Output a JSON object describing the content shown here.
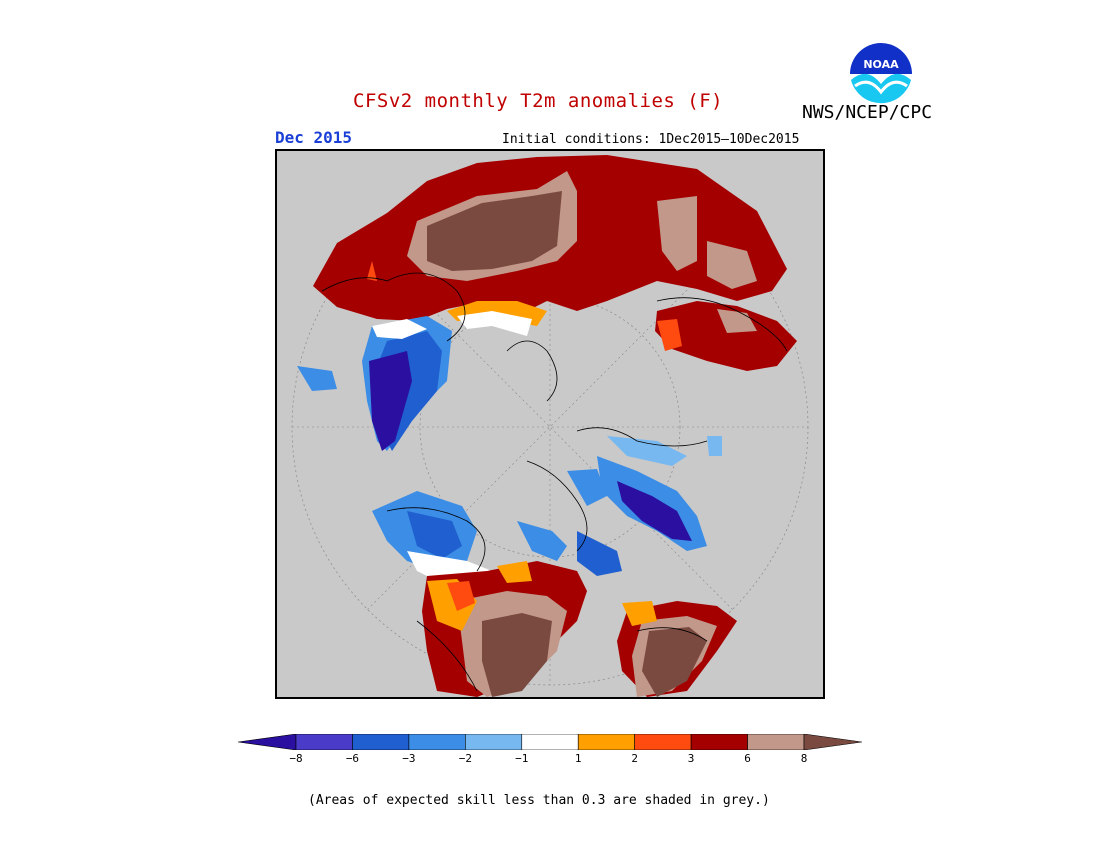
{
  "title": "CFSv2 monthly T2m anomalies (F)",
  "org": "NWS/NCEP/CPC",
  "logo_text": "NOAA",
  "month": "Dec 2015",
  "initial_conditions": "Initial conditions: 1Dec2015–10Dec2015",
  "footnote": "(Areas of expected skill less than 0.3 are shaded in grey.)",
  "colorbar": {
    "ticks": [
      "−8",
      "−6",
      "−3",
      "−2",
      "−1",
      "1",
      "2",
      "3",
      "6",
      "8"
    ],
    "colors": [
      "#2a0fa0",
      "#4a3cc8",
      "#1f5fcf",
      "#3c8de6",
      "#78b8f0",
      "#ffffff",
      "#ffa000",
      "#ff4a10",
      "#a50000",
      "#c2988a",
      "#7a4a40"
    ]
  },
  "colors": {
    "background_grey": "#c9c9c9",
    "title": "#c00000",
    "month": "#1a3fd6"
  }
}
